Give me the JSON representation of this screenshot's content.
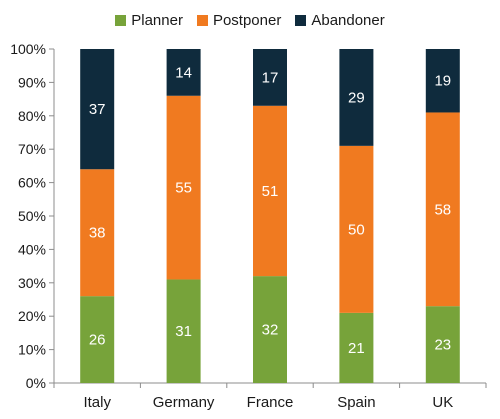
{
  "chart_data": {
    "type": "bar",
    "stacked": true,
    "title": "",
    "xlabel": "",
    "ylabel": "",
    "categories": [
      "Italy",
      "Germany",
      "France",
      "Spain",
      "UK"
    ],
    "series": [
      {
        "name": "Planner",
        "color": "#77a33a",
        "values": [
          26,
          31,
          32,
          21,
          23
        ]
      },
      {
        "name": "Postponer",
        "color": "#f07a20",
        "values": [
          38,
          55,
          51,
          50,
          58
        ]
      },
      {
        "name": "Abandoner",
        "color": "#0f2b3d",
        "values": [
          37,
          14,
          17,
          29,
          19
        ]
      }
    ],
    "ylim": [
      0,
      100
    ],
    "yticks": [
      "0%",
      "10%",
      "20%",
      "30%",
      "40%",
      "50%",
      "60%",
      "70%",
      "80%",
      "90%",
      "100%"
    ],
    "grid": false,
    "legend": "top-center"
  }
}
